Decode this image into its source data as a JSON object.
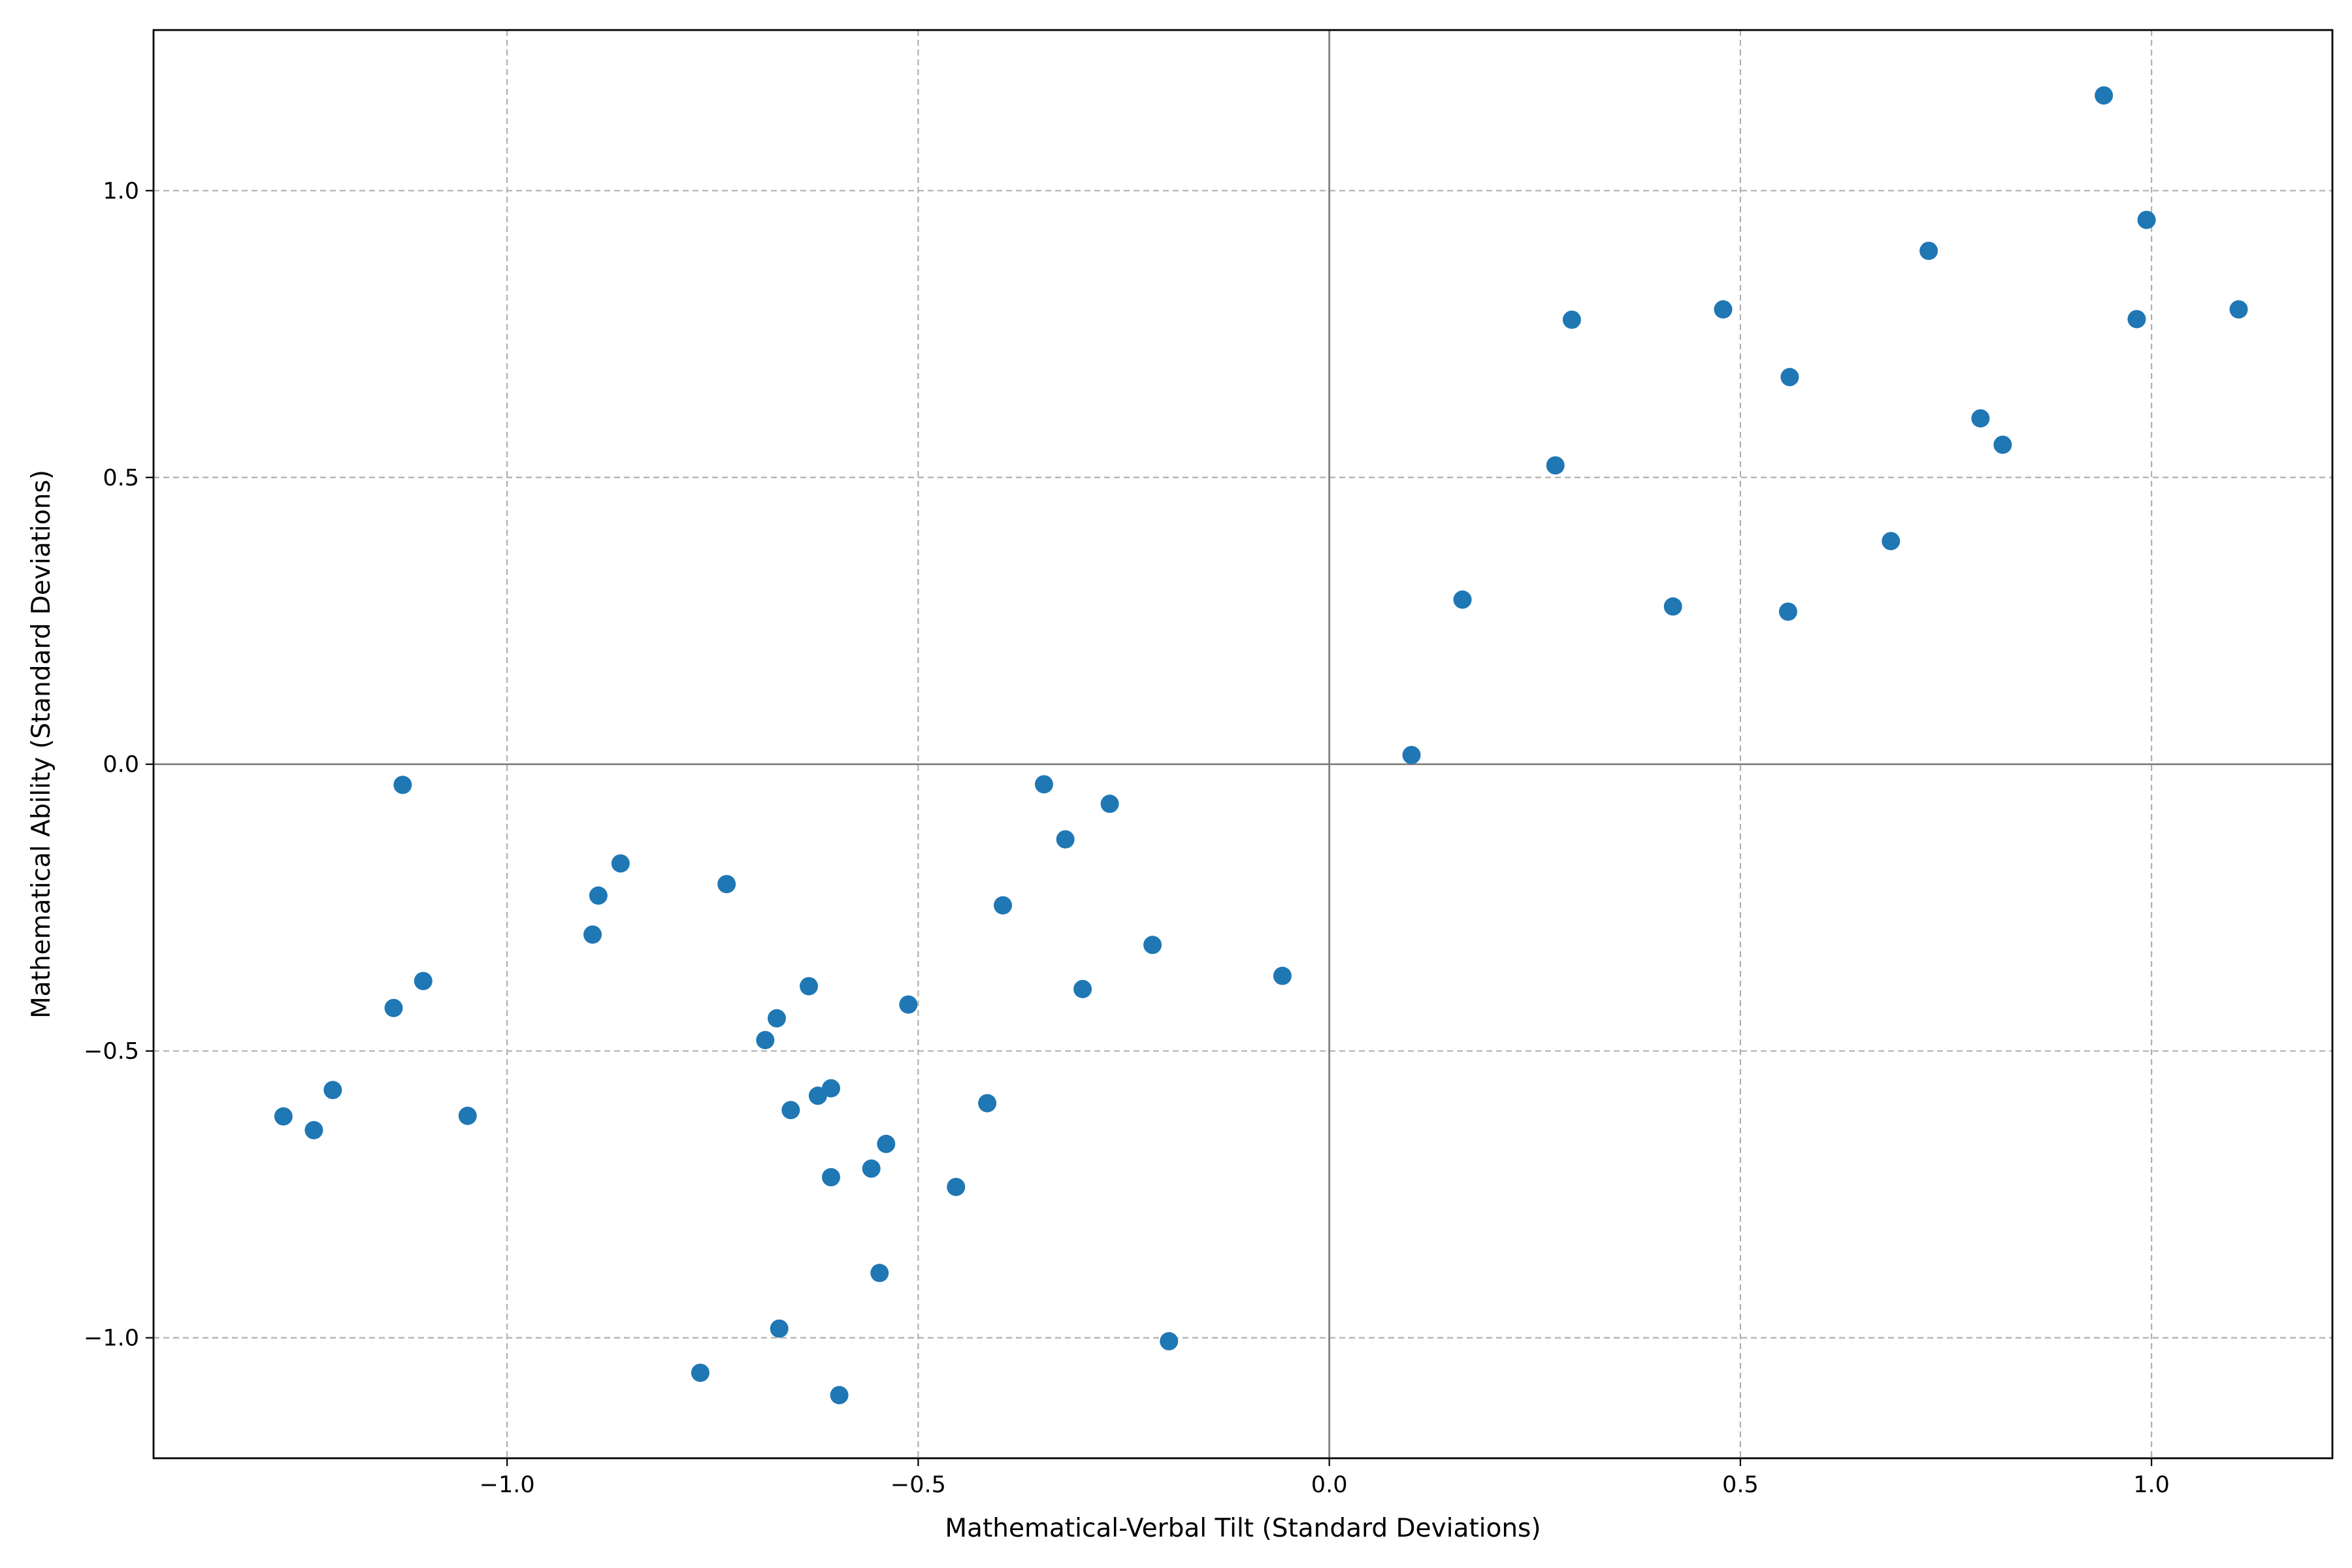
{
  "chart_data": {
    "type": "scatter",
    "xlabel": "Mathematical-Verbal Tilt (Standard Deviations)",
    "ylabel": "Mathematical Ability (Standard Deviations)",
    "xlim": [
      -1.43,
      1.22
    ],
    "ylim": [
      -1.21,
      1.28
    ],
    "xticks": [
      -1.0,
      -0.5,
      0.0,
      0.5,
      1.0
    ],
    "xtick_labels": [
      "−1.0",
      "−0.5",
      "0.0",
      "0.5",
      "1.0"
    ],
    "yticks": [
      -1.0,
      -0.5,
      0.0,
      0.5,
      1.0
    ],
    "ytick_labels": [
      "−1.0",
      "−0.5",
      "0.0",
      "0.5",
      "1.0"
    ],
    "grid": true,
    "zero_lines": true,
    "marker_color": "#1f77b4",
    "x": [
      -1.272,
      -1.235,
      -1.212,
      -1.138,
      -1.127,
      -1.102,
      -1.048,
      -0.896,
      -0.889,
      -0.862,
      -0.765,
      -0.733,
      -0.686,
      -0.669,
      -0.672,
      -0.655,
      -0.633,
      -0.622,
      -0.606,
      -0.606,
      -0.596,
      -0.557,
      -0.547,
      -0.539,
      -0.512,
      -0.454,
      -0.416,
      -0.397,
      -0.347,
      -0.321,
      -0.3,
      -0.267,
      -0.215,
      -0.195,
      -0.057,
      0.1,
      0.162,
      0.275,
      0.295,
      0.418,
      0.479,
      0.558,
      0.56,
      0.683,
      0.729,
      0.792,
      0.819,
      0.942,
      0.982,
      0.994,
      1.106
    ],
    "y": [
      -0.614,
      -0.638,
      -0.568,
      -0.425,
      -0.036,
      -0.378,
      -0.613,
      -0.297,
      -0.229,
      -0.173,
      -1.061,
      -0.209,
      -0.481,
      -0.984,
      -0.443,
      -0.603,
      -0.387,
      -0.578,
      -0.72,
      -0.565,
      -1.1,
      -0.705,
      -0.887,
      -0.662,
      -0.419,
      -0.737,
      -0.591,
      -0.246,
      -0.035,
      -0.131,
      -0.392,
      -0.069,
      -0.315,
      -1.006,
      -0.369,
      0.016,
      0.287,
      0.521,
      0.775,
      0.275,
      0.793,
      0.266,
      0.675,
      0.389,
      0.895,
      0.603,
      0.557,
      1.166,
      0.776,
      0.949,
      0.793
    ]
  }
}
